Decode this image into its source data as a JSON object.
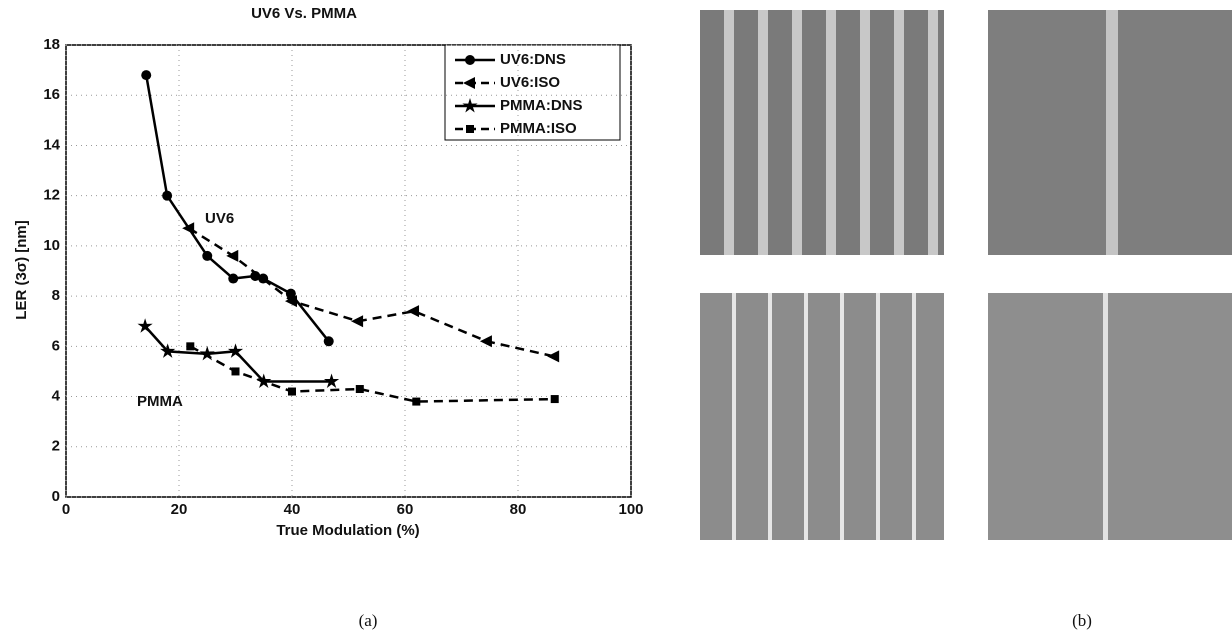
{
  "chart_data": {
    "type": "line",
    "title": "UV6 Vs. PMMA",
    "x_label": "True Modulation (%)",
    "y_label": "LER (3σ) [nm]",
    "xlim": [
      0,
      100
    ],
    "xticks": [
      0,
      20,
      40,
      60,
      80,
      100
    ],
    "ylim": [
      0,
      18
    ],
    "yticks": [
      0,
      2,
      4,
      6,
      8,
      10,
      12,
      14,
      16,
      18
    ],
    "grid": true,
    "legend": "upper right",
    "series": [
      {
        "name": "UV6:DNS",
        "color": "#000000",
        "marker": "circle",
        "linestyle": "solid",
        "x": [
          14.2,
          17.9,
          25,
          29.6,
          33.5,
          34.9,
          39.8,
          46.5
        ],
        "values": [
          16.8,
          12,
          9.6,
          8.7,
          8.8,
          8.7,
          8.1,
          6.2
        ]
      },
      {
        "name": "UV6:ISO",
        "color": "#000000",
        "marker": "triangle-left",
        "linestyle": "dashed",
        "x": [
          21.8,
          29.6,
          40,
          51.7,
          61.6,
          74.5,
          86.4
        ],
        "values": [
          10.7,
          9.6,
          7.8,
          7.0,
          7.4,
          6.2,
          5.6
        ]
      },
      {
        "name": "PMMA:DNS",
        "color": "#000000",
        "marker": "star",
        "linestyle": "solid",
        "x": [
          14,
          18,
          25,
          30,
          35,
          47
        ],
        "values": [
          6.8,
          5.8,
          5.7,
          5.8,
          4.6,
          4.6
        ]
      },
      {
        "name": "PMMA:ISO",
        "color": "#000000",
        "marker": "square",
        "linestyle": "dashed",
        "x": [
          22,
          30,
          40,
          52,
          62,
          86.5
        ],
        "values": [
          6.0,
          5.0,
          4.2,
          4.3,
          3.8,
          3.9
        ]
      }
    ],
    "annotations": [
      "UV6",
      "PMMA"
    ]
  },
  "captions": [
    "(a)",
    "(b)"
  ]
}
